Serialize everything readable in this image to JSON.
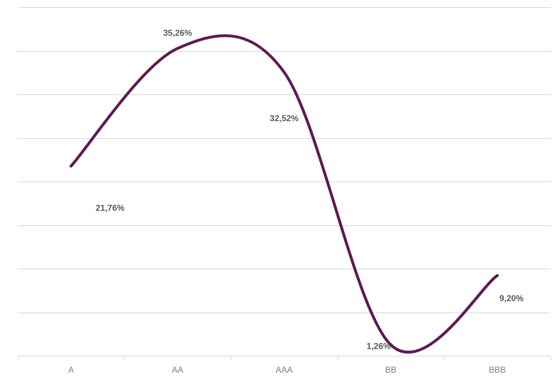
{
  "chart_data": {
    "type": "line",
    "smooth": true,
    "categories": [
      "A",
      "AA",
      "AAA",
      "BB",
      "BBB"
    ],
    "series": [
      {
        "values": [
          21.76,
          35.26,
          32.52,
          1.26,
          9.2
        ],
        "color": "#5c1a54"
      }
    ],
    "data_labels": [
      "21,76%",
      "35,26%",
      "32,52%",
      "1,26%",
      "9,20%"
    ],
    "ylim": [
      0,
      40
    ],
    "y_gridlines": 8,
    "grid": true,
    "legend": "none",
    "title": "",
    "xlabel": "",
    "ylabel": ""
  }
}
